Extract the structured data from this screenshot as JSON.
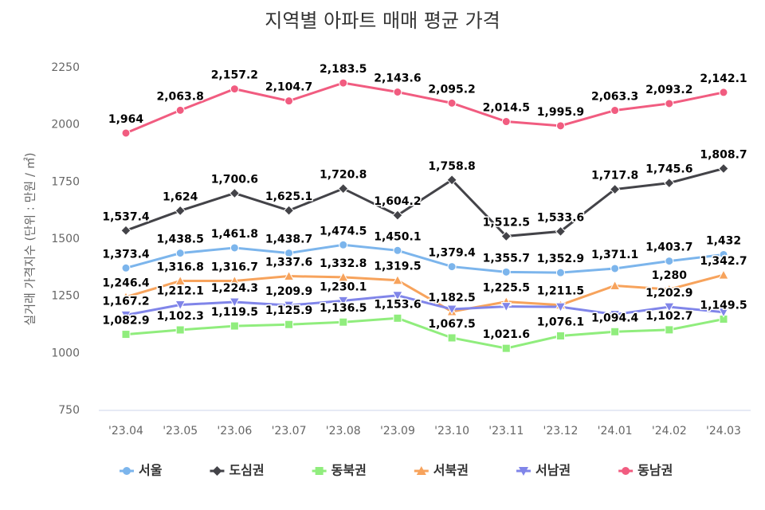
{
  "chart_data": {
    "type": "line",
    "title": "지역별 아파트 매매 평균 가격",
    "y_label": "실거래 가격지수 (단위 : 만원 / ㎡)",
    "categories": [
      "'23.04",
      "'23.05",
      "'23.06",
      "'23.07",
      "'23.08",
      "'23.09",
      "'23.10",
      "'23.11",
      "'23.12",
      "'24.01",
      "'24.02",
      "'24.03"
    ],
    "ylim": [
      750,
      2250
    ],
    "yticks": [
      750,
      1000,
      1250,
      1500,
      1750,
      2000,
      2250
    ],
    "grid": false,
    "legend": "bottom",
    "series": [
      {
        "name": "서울",
        "color": "#7cb5ec",
        "marker": "circle",
        "values": [
          1373.4,
          1438.5,
          1461.8,
          1438.7,
          1474.5,
          1450.1,
          1379.4,
          1355.7,
          1352.9,
          1371.1,
          1403.7,
          1432
        ],
        "value_labels": [
          "1,373.4",
          "1,438.5",
          "1,461.8",
          "1,438.7",
          "1,474.5",
          "1,450.1",
          "1,379.4",
          "1,355.7",
          "1,352.9",
          "1,371.1",
          "1,403.7",
          "1,432"
        ]
      },
      {
        "name": "도심권",
        "color": "#434348",
        "marker": "diamond",
        "values": [
          1537.4,
          1624,
          1700.6,
          1625.1,
          1720.8,
          1604.2,
          1758.8,
          1512.5,
          1533.6,
          1717.8,
          1745.6,
          1808.7
        ],
        "value_labels": [
          "1,537.4",
          "1,624",
          "1,700.6",
          "1,625.1",
          "1,720.8",
          "1,604.2",
          "1,758.8",
          "1,512.5",
          "1,533.6",
          "1,717.8",
          "1,745.6",
          "1,808.7"
        ]
      },
      {
        "name": "동북권",
        "color": "#90ed7d",
        "marker": "square",
        "values": [
          1082.9,
          1102.3,
          1119.5,
          1125.9,
          1136.5,
          1153.6,
          1067.5,
          1021.6,
          1076.1,
          1094.4,
          1102.7,
          1149.5
        ],
        "value_labels": [
          "1,082.9",
          "1,102.3",
          "1,119.5",
          "1,125.9",
          "1,136.5",
          "1,153.6",
          "1,067.5",
          "1,021.6",
          "1,076.1",
          "1,094.4",
          "1,102.7",
          "1,149.5"
        ]
      },
      {
        "name": "서북권",
        "color": "#f7a35c",
        "marker": "triangle",
        "values": [
          1246.4,
          1316.8,
          1316.7,
          1337.6,
          1332.8,
          1319.5,
          1182.5,
          1225.5,
          1211.5,
          1296,
          1280,
          1342.7
        ],
        "value_labels": [
          "1,246.4",
          "1,316.8",
          "1,316.7",
          "1,337.6",
          "1,332.8",
          "1,319.5",
          "1,182.5",
          "1,225.5",
          "1,211.5",
          null,
          "1,280",
          "1,342.7"
        ]
      },
      {
        "name": "서남권",
        "color": "#8085e9",
        "marker": "triangle-down",
        "values": [
          1167.2,
          1212.1,
          1224.3,
          1209.9,
          1230.1,
          1253,
          1193,
          1205,
          1203,
          1170,
          1202.9,
          1180
        ],
        "value_labels": [
          "1,167.2",
          "1,212.1",
          "1,224.3",
          "1,209.9",
          "1,230.1",
          null,
          null,
          null,
          null,
          null,
          "1,202.9",
          null
        ]
      },
      {
        "name": "동남권",
        "color": "#f15c80",
        "marker": "circle",
        "values": [
          1964,
          2063.8,
          2157.2,
          2104.7,
          2183.5,
          2143.6,
          2095.2,
          2014.5,
          1995.9,
          2063.3,
          2093.2,
          2142.1
        ],
        "value_labels": [
          "1,964",
          "2,063.8",
          "2,157.2",
          "2,104.7",
          "2,183.5",
          "2,143.6",
          "2,095.2",
          "2,014.5",
          "1,995.9",
          "2,063.3",
          "2,093.2",
          "2,142.1"
        ]
      }
    ]
  }
}
